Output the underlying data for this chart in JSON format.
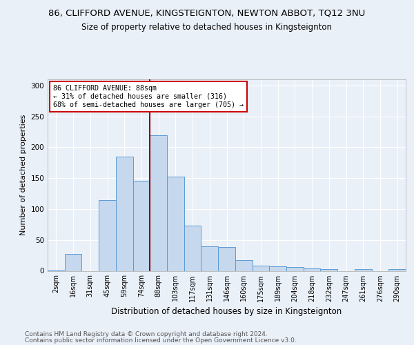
{
  "title1": "86, CLIFFORD AVENUE, KINGSTEIGNTON, NEWTON ABBOT, TQ12 3NU",
  "title2": "Size of property relative to detached houses in Kingsteignton",
  "xlabel": "Distribution of detached houses by size in Kingsteignton",
  "ylabel": "Number of detached properties",
  "footer1": "Contains HM Land Registry data © Crown copyright and database right 2024.",
  "footer2": "Contains public sector information licensed under the Open Government Licence v3.0.",
  "categories": [
    "2sqm",
    "16sqm",
    "31sqm",
    "45sqm",
    "59sqm",
    "74sqm",
    "88sqm",
    "103sqm",
    "117sqm",
    "131sqm",
    "146sqm",
    "160sqm",
    "175sqm",
    "189sqm",
    "204sqm",
    "218sqm",
    "232sqm",
    "247sqm",
    "261sqm",
    "276sqm",
    "290sqm"
  ],
  "values": [
    1,
    27,
    0,
    115,
    185,
    146,
    220,
    152,
    73,
    40,
    38,
    17,
    8,
    7,
    6,
    4,
    3,
    0,
    3,
    0,
    3
  ],
  "bar_color": "#c5d8ed",
  "bar_edge_color": "#5b9bd5",
  "vline_color": "#8b0000",
  "annotation_text": "86 CLIFFORD AVENUE: 88sqm\n← 31% of detached houses are smaller (316)\n68% of semi-detached houses are larger (705) →",
  "annotation_box_color": "white",
  "annotation_box_edge": "#cc0000",
  "ylim": [
    0,
    310
  ],
  "yticks": [
    0,
    50,
    100,
    150,
    200,
    250,
    300
  ],
  "bg_color": "#eaf0f8",
  "plot_bg_color": "#eaf0f8",
  "grid_color": "white",
  "title1_fontsize": 9.5,
  "title2_fontsize": 8.5,
  "xlabel_fontsize": 8.5,
  "ylabel_fontsize": 8,
  "footer_fontsize": 6.5
}
